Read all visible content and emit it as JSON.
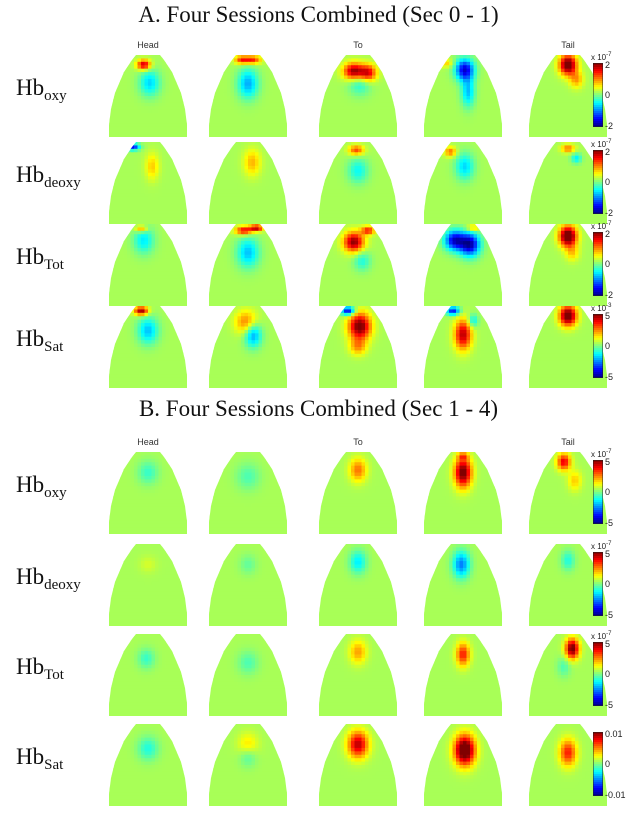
{
  "panels": [
    {
      "title": "A.  Four Sessions Combined (Sec 0 - 1)",
      "columns": [
        "Head",
        "",
        "To",
        "",
        "Tail"
      ],
      "rows": [
        {
          "base": "Hb",
          "sub": "oxy",
          "ticks": [
            "2",
            "0",
            "-2"
          ],
          "scale": {
            "prefix": "x 10",
            "exp": "-7"
          },
          "blobs": [
            [
              [
                0.45,
                0.12,
                0.08,
                0.06,
                0.9
              ],
              [
                0.52,
                0.34,
                0.12,
                0.16,
                -0.45
              ]
            ],
            [
              [
                0.42,
                0.06,
                0.08,
                0.05,
                0.6
              ],
              [
                0.55,
                0.06,
                0.1,
                0.05,
                0.7
              ],
              [
                0.5,
                0.35,
                0.12,
                0.18,
                -0.55
              ]
            ],
            [
              [
                0.45,
                0.2,
                0.12,
                0.1,
                1.0
              ],
              [
                0.62,
                0.22,
                0.1,
                0.1,
                0.8
              ],
              [
                0.52,
                0.35,
                0.13,
                0.14,
                -0.3
              ]
            ],
            [
              [
                0.52,
                0.18,
                0.11,
                0.13,
                -1.0
              ],
              [
                0.56,
                0.45,
                0.08,
                0.18,
                -0.5
              ],
              [
                0.3,
                0.1,
                0.08,
                0.05,
                0.3
              ]
            ],
            [
              [
                0.5,
                0.12,
                0.1,
                0.12,
                1.2
              ],
              [
                0.6,
                0.3,
                0.08,
                0.1,
                0.4
              ]
            ]
          ]
        },
        {
          "base": "Hb",
          "sub": "deoxy",
          "ticks": [
            "2",
            "0",
            "-2"
          ],
          "scale": {
            "prefix": "x 10",
            "exp": "-7"
          },
          "blobs": [
            [
              [
                0.32,
                0.06,
                0.08,
                0.04,
                -0.9
              ],
              [
                0.55,
                0.3,
                0.08,
                0.16,
                0.3
              ]
            ],
            [
              [
                0.55,
                0.25,
                0.1,
                0.16,
                0.35
              ]
            ],
            [
              [
                0.48,
                0.1,
                0.09,
                0.06,
                0.6
              ],
              [
                0.5,
                0.35,
                0.12,
                0.15,
                -0.35
              ]
            ],
            [
              [
                0.35,
                0.12,
                0.07,
                0.06,
                0.5
              ],
              [
                0.52,
                0.3,
                0.11,
                0.16,
                -0.45
              ]
            ],
            [
              [
                0.5,
                0.08,
                0.08,
                0.05,
                0.5
              ],
              [
                0.6,
                0.2,
                0.06,
                0.06,
                -0.4
              ]
            ]
          ]
        },
        {
          "base": "Hb",
          "sub": "Tot",
          "ticks": [
            "2",
            "0",
            "-2"
          ],
          "scale": {
            "prefix": "x 10",
            "exp": "-7"
          },
          "blobs": [
            [
              [
                0.45,
                0.2,
                0.12,
                0.16,
                -0.4
              ],
              [
                0.42,
                0.06,
                0.07,
                0.04,
                0.5
              ]
            ],
            [
              [
                0.45,
                0.08,
                0.1,
                0.05,
                0.8
              ],
              [
                0.6,
                0.05,
                0.08,
                0.04,
                0.9
              ],
              [
                0.5,
                0.35,
                0.13,
                0.18,
                -0.5
              ]
            ],
            [
              [
                0.45,
                0.22,
                0.12,
                0.12,
                1.0
              ],
              [
                0.62,
                0.08,
                0.08,
                0.05,
                0.7
              ],
              [
                0.55,
                0.45,
                0.1,
                0.12,
                -0.3
              ]
            ],
            [
              [
                0.4,
                0.2,
                0.12,
                0.12,
                -1.0
              ],
              [
                0.58,
                0.25,
                0.12,
                0.14,
                -1.1
              ],
              [
                0.62,
                0.05,
                0.08,
                0.04,
                0.4
              ]
            ],
            [
              [
                0.5,
                0.15,
                0.1,
                0.12,
                1.3
              ],
              [
                0.55,
                0.35,
                0.08,
                0.1,
                0.3
              ]
            ]
          ]
        },
        {
          "base": "Hb",
          "sub": "Sat",
          "ticks": [
            "5",
            "0",
            "-5"
          ],
          "scale": {
            "prefix": "x 10",
            "exp": "-3"
          },
          "blobs": [
            [
              [
                0.42,
                0.06,
                0.08,
                0.05,
                1.0
              ],
              [
                0.5,
                0.3,
                0.12,
                0.16,
                -0.5
              ]
            ],
            [
              [
                0.48,
                0.2,
                0.13,
                0.14,
                0.5
              ],
              [
                0.56,
                0.35,
                0.1,
                0.15,
                -0.6
              ]
            ],
            [
              [
                0.38,
                0.06,
                0.08,
                0.05,
                -1.0
              ],
              [
                0.52,
                0.25,
                0.13,
                0.16,
                1.1
              ],
              [
                0.5,
                0.5,
                0.1,
                0.1,
                0.4
              ]
            ],
            [
              [
                0.38,
                0.06,
                0.08,
                0.05,
                -0.9
              ],
              [
                0.5,
                0.35,
                0.1,
                0.18,
                0.9
              ],
              [
                0.62,
                0.18,
                0.06,
                0.08,
                -0.4
              ]
            ],
            [
              [
                0.5,
                0.12,
                0.1,
                0.12,
                1.2
              ]
            ]
          ]
        }
      ]
    },
    {
      "title": "B.  Four Sessions Combined (Sec 1 - 4)",
      "columns": [
        "Head",
        "",
        "To",
        "",
        "Tail"
      ],
      "rows": [
        {
          "base": "Hb",
          "sub": "oxy",
          "ticks": [
            "5",
            "0",
            "-5"
          ],
          "scale": {
            "prefix": "x 10",
            "exp": "-7"
          },
          "blobs": [
            [
              [
                0.5,
                0.25,
                0.12,
                0.14,
                -0.25
              ]
            ],
            [
              [
                0.5,
                0.3,
                0.14,
                0.16,
                -0.2
              ]
            ],
            [
              [
                0.5,
                0.22,
                0.1,
                0.14,
                0.5
              ]
            ],
            [
              [
                0.5,
                0.25,
                0.1,
                0.18,
                1.1
              ],
              [
                0.5,
                0.05,
                0.06,
                0.04,
                0.4
              ]
            ],
            [
              [
                0.45,
                0.12,
                0.08,
                0.1,
                0.8
              ],
              [
                0.58,
                0.35,
                0.08,
                0.12,
                0.3
              ]
            ]
          ]
        },
        {
          "base": "Hb",
          "sub": "deoxy",
          "ticks": [
            "5",
            "0",
            "-5"
          ],
          "scale": {
            "prefix": "x 10",
            "exp": "-7"
          },
          "blobs": [
            [
              [
                0.5,
                0.25,
                0.1,
                0.1,
                0.1
              ]
            ],
            [
              [
                0.5,
                0.25,
                0.1,
                0.12,
                -0.15
              ]
            ],
            [
              [
                0.5,
                0.22,
                0.1,
                0.14,
                -0.4
              ]
            ],
            [
              [
                0.48,
                0.25,
                0.1,
                0.16,
                -0.65
              ]
            ],
            [
              [
                0.5,
                0.2,
                0.08,
                0.12,
                -0.3
              ]
            ]
          ]
        },
        {
          "base": "Hb",
          "sub": "Tot",
          "ticks": [
            "5",
            "0",
            "-5"
          ],
          "scale": {
            "prefix": "x 10",
            "exp": "-7"
          },
          "blobs": [
            [
              [
                0.48,
                0.3,
                0.1,
                0.12,
                -0.25
              ]
            ],
            [
              [
                0.5,
                0.35,
                0.12,
                0.14,
                -0.2
              ]
            ],
            [
              [
                0.5,
                0.22,
                0.1,
                0.14,
                0.4
              ]
            ],
            [
              [
                0.5,
                0.25,
                0.08,
                0.14,
                0.7
              ]
            ],
            [
              [
                0.55,
                0.18,
                0.08,
                0.12,
                1.1
              ],
              [
                0.45,
                0.4,
                0.08,
                0.12,
                -0.2
              ]
            ]
          ]
        },
        {
          "base": "Hb",
          "sub": "Sat",
          "ticks": [
            "0.01",
            "0",
            "-0.01"
          ],
          "scale": {
            "prefix": "",
            "exp": ""
          },
          "blobs": [
            [
              [
                0.5,
                0.3,
                0.12,
                0.14,
                -0.3
              ]
            ],
            [
              [
                0.5,
                0.25,
                0.12,
                0.14,
                0.25
              ],
              [
                0.5,
                0.4,
                0.1,
                0.12,
                -0.2
              ]
            ],
            [
              [
                0.5,
                0.25,
                0.12,
                0.16,
                0.9
              ]
            ],
            [
              [
                0.52,
                0.32,
                0.12,
                0.18,
                1.3
              ]
            ],
            [
              [
                0.5,
                0.35,
                0.1,
                0.16,
                0.7
              ]
            ]
          ]
        }
      ]
    }
  ]
}
